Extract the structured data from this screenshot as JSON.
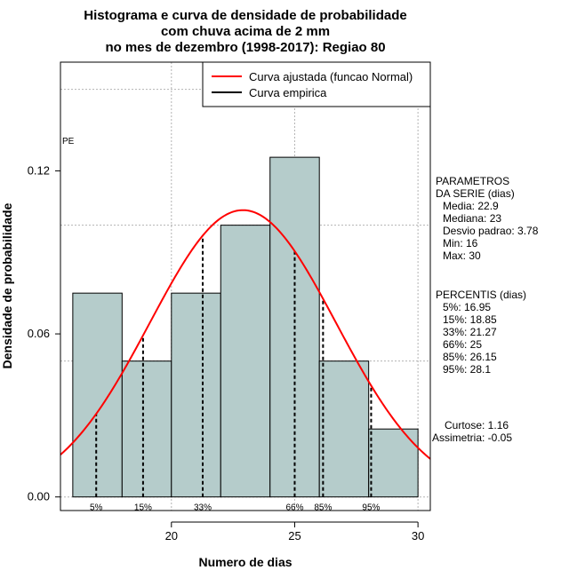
{
  "chart_data": {
    "type": "bar",
    "title_lines": [
      "Histograma e curva de densidade de probabilidade",
      "com chuva acima de 2 mm",
      "no mes de dezembro (1998-2017): Regiao 80"
    ],
    "xlabel": "Numero de dias",
    "ylabel": "Densidade de probabilidade",
    "xlim": [
      15.5,
      30.5
    ],
    "ylim": [
      -0.005,
      0.16
    ],
    "x_ticks": [
      20,
      25,
      30
    ],
    "x_tick_labels": [
      "20",
      "25",
      "30"
    ],
    "y_ticks": [
      0.0,
      0.06,
      0.12
    ],
    "y_tick_labels": [
      "0.00",
      "0.06",
      "0.12"
    ],
    "grid_x": [
      20,
      25,
      30
    ],
    "grid_y": [
      0.0,
      0.05,
      0.1,
      0.15
    ],
    "grid": true,
    "bins": [
      {
        "x0": 16,
        "x1": 18,
        "density": 0.075
      },
      {
        "x0": 18,
        "x1": 20,
        "density": 0.05
      },
      {
        "x0": 20,
        "x1": 22,
        "density": 0.075
      },
      {
        "x0": 22,
        "x1": 24,
        "density": 0.1
      },
      {
        "x0": 24,
        "x1": 26,
        "density": 0.125
      },
      {
        "x0": 26,
        "x1": 28,
        "density": 0.05
      },
      {
        "x0": 28,
        "x1": 30,
        "density": 0.025
      }
    ],
    "bar_color": "#b5cccb",
    "normal_curve": {
      "mean": 22.9,
      "sd": 3.78,
      "color": "#ff0000"
    },
    "percentile_lines": [
      {
        "label": "5%",
        "x": 16.95
      },
      {
        "label": "15%",
        "x": 18.85
      },
      {
        "label": "33%",
        "x": 21.27
      },
      {
        "label": "66%",
        "x": 25
      },
      {
        "label": "85%",
        "x": 26.15
      },
      {
        "label": "95%",
        "x": 28.1
      }
    ],
    "legend": {
      "position": "top-right",
      "entries": [
        {
          "label": "Curva ajustada (funcao Normal)",
          "color": "#ff0000"
        },
        {
          "label": "Curva empirica",
          "color": "#000000"
        }
      ]
    },
    "corner_label": "PE",
    "parameters_block": [
      "PARAMETROS",
      "DA SERIE (dias)",
      "Media: 22.9",
      "Mediana: 23",
      "Desvio padrao: 3.78",
      "Min: 16",
      "Max: 30"
    ],
    "percentis_block": [
      "PERCENTIS (dias)",
      "5%: 16.95",
      "15%: 18.85",
      "33%: 21.27",
      "66%: 25",
      "85%: 26.15",
      "95%: 28.1"
    ],
    "shape_block": [
      "Curtose: 1.16",
      "Assimetria: -0.05"
    ]
  }
}
